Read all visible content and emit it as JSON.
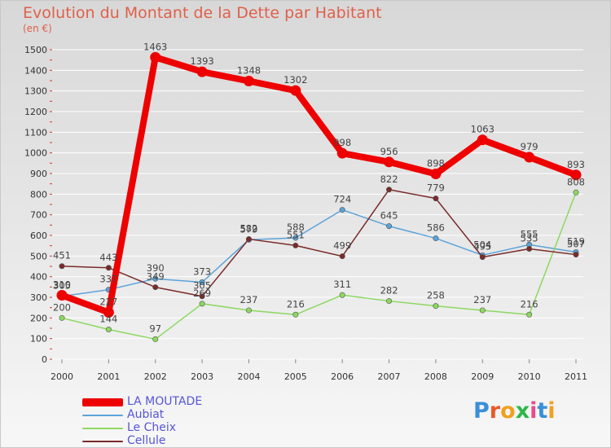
{
  "colors": {
    "accent": "#e0604a",
    "grid": "#ffffff",
    "axis_text": "#333333",
    "value_text": "#444444"
  },
  "logo": {
    "text": "Proxiti",
    "letter_colors": [
      "#3a8fd8",
      "#e85a2a",
      "#f0a020",
      "#2db84a",
      "#e84a8a",
      "#3a8fd8",
      "#f0a020"
    ]
  },
  "chart_data": {
    "type": "line",
    "title": "Evolution du Montant de la Dette par Habitant",
    "subtitle": "(en €)",
    "x": [
      "2000",
      "2001",
      "2002",
      "2003",
      "2004",
      "2005",
      "2006",
      "2007",
      "2008",
      "2009",
      "2010",
      "2011"
    ],
    "ylim": [
      0,
      1500
    ],
    "yticks": [
      0,
      100,
      200,
      300,
      400,
      500,
      600,
      700,
      800,
      900,
      1000,
      1100,
      1200,
      1300,
      1400,
      1500
    ],
    "grid": "horizontal",
    "series": [
      {
        "name": "LA MOUTADE",
        "color": "#ee0000",
        "values": [
          310,
          227,
          1463,
          1393,
          1348,
          1302,
          998,
          956,
          898,
          1063,
          979,
          893
        ]
      },
      {
        "name": "Aubiat",
        "color": "#5ba3d9",
        "values": [
          305,
          337,
          390,
          373,
          579,
          588,
          724,
          645,
          586,
          504,
          555,
          519
        ]
      },
      {
        "name": "Le Cheix",
        "color": "#8cd860",
        "values": [
          200,
          144,
          97,
          269,
          237,
          216,
          311,
          282,
          258,
          237,
          216,
          808
        ]
      },
      {
        "name": "Cellule",
        "color": "#7a2a2a",
        "values": [
          451,
          443,
          349,
          305,
          582,
          551,
          499,
          822,
          779,
          495,
          535,
          507
        ]
      }
    ],
    "legend_position": "bottom-left"
  }
}
